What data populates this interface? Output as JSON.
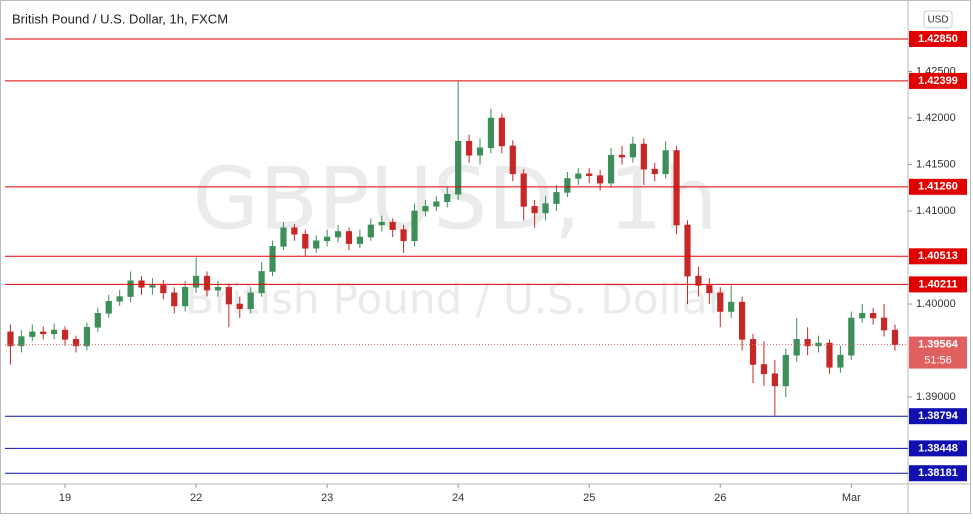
{
  "chart_data": {
    "type": "candlestick",
    "title": "British Pound / U.S. Dollar, 1h, FXCM",
    "watermark": [
      "GBPUSD, 1h",
      "British Pound / U.S. Dollar"
    ],
    "currency_button": "USD",
    "up_color": "#3d8f5a",
    "down_color": "#c62828",
    "grid": false,
    "categories": [
      null,
      null,
      null,
      null,
      null,
      "19",
      null,
      null,
      null,
      null,
      null,
      null,
      null,
      null,
      null,
      null,
      null,
      "22",
      null,
      null,
      null,
      null,
      null,
      null,
      null,
      null,
      null,
      null,
      null,
      "23",
      null,
      null,
      null,
      null,
      null,
      null,
      null,
      null,
      null,
      null,
      null,
      "24",
      null,
      null,
      null,
      null,
      null,
      null,
      null,
      null,
      null,
      null,
      null,
      "25",
      null,
      null,
      null,
      null,
      null,
      null,
      null,
      null,
      null,
      null,
      null,
      "26",
      null,
      null,
      null,
      null,
      null,
      null,
      null,
      null,
      null,
      null,
      null,
      "Mar",
      null,
      null,
      null,
      null
    ],
    "open": [
      1.397,
      1.3955,
      1.3965,
      1.397,
      1.3968,
      1.3972,
      1.3962,
      1.3955,
      1.3975,
      1.399,
      1.4003,
      1.4008,
      1.4025,
      1.4018,
      1.402,
      1.4012,
      1.3998,
      1.4018,
      1.403,
      1.4015,
      1.4018,
      1.4,
      1.3995,
      1.4012,
      1.4035,
      1.4062,
      1.4082,
      1.4075,
      1.406,
      1.4068,
      1.4072,
      1.4078,
      1.4065,
      1.4072,
      1.4085,
      1.4088,
      1.408,
      1.4068,
      1.41,
      1.4105,
      1.411,
      1.4118,
      1.4175,
      1.416,
      1.4168,
      1.42,
      1.417,
      1.414,
      1.4105,
      1.4098,
      1.4108,
      1.412,
      1.4135,
      1.414,
      1.4138,
      1.413,
      1.416,
      1.4158,
      1.4172,
      1.4145,
      1.414,
      1.4165,
      1.4085,
      1.403,
      1.402,
      1.4012,
      1.3992,
      1.4002,
      1.3962,
      1.3935,
      1.3925,
      1.3912,
      1.3945,
      1.3962,
      1.3955,
      1.3958,
      1.3932,
      1.3945,
      1.3985,
      1.399,
      1.3985,
      1.3972
    ],
    "high": [
      1.3978,
      1.3972,
      1.3978,
      1.3976,
      1.3979,
      1.3976,
      1.3966,
      1.398,
      1.3996,
      1.401,
      1.4015,
      1.4035,
      1.403,
      1.4028,
      1.4026,
      1.4018,
      1.4025,
      1.405,
      1.4035,
      1.4025,
      1.4022,
      1.4008,
      1.4018,
      1.4045,
      1.4068,
      1.4088,
      1.4086,
      1.408,
      1.4074,
      1.408,
      1.4085,
      1.4082,
      1.408,
      1.4092,
      1.4095,
      1.4092,
      1.4085,
      1.4108,
      1.4112,
      1.4116,
      1.4126,
      1.424,
      1.4182,
      1.4178,
      1.421,
      1.4205,
      1.4176,
      1.4145,
      1.4112,
      1.4116,
      1.4128,
      1.4142,
      1.4146,
      1.4146,
      1.4144,
      1.4168,
      1.417,
      1.418,
      1.4178,
      1.4152,
      1.4175,
      1.417,
      1.409,
      1.404,
      1.4028,
      1.4018,
      1.402,
      1.4008,
      1.3968,
      1.396,
      1.394,
      1.3952,
      1.3985,
      1.3975,
      1.3966,
      1.3962,
      1.3955,
      1.3992,
      1.4,
      1.3996,
      1.4,
      1.3978
    ],
    "low": [
      1.3935,
      1.3948,
      1.396,
      1.3962,
      1.3962,
      1.3955,
      1.3948,
      1.395,
      1.397,
      1.3985,
      1.3998,
      1.4002,
      1.401,
      1.401,
      1.4005,
      1.399,
      1.3992,
      1.4012,
      1.4008,
      1.4008,
      1.3975,
      1.3985,
      1.399,
      1.4008,
      1.403,
      1.4058,
      1.4068,
      1.4052,
      1.4055,
      1.4062,
      1.4066,
      1.4058,
      1.406,
      1.4068,
      1.4078,
      1.4072,
      1.4055,
      1.4062,
      1.4094,
      1.41,
      1.4104,
      1.4112,
      1.4152,
      1.415,
      1.4162,
      1.4162,
      1.4132,
      1.409,
      1.4082,
      1.409,
      1.41,
      1.4115,
      1.4128,
      1.413,
      1.4122,
      1.4125,
      1.415,
      1.4152,
      1.4128,
      1.4132,
      1.4135,
      1.4075,
      1.4,
      1.4008,
      1.4,
      1.3975,
      1.3985,
      1.395,
      1.3915,
      1.3912,
      1.388,
      1.39,
      1.3938,
      1.3945,
      1.3948,
      1.3925,
      1.3926,
      1.394,
      1.398,
      1.3978,
      1.3965,
      1.395
    ],
    "close": [
      1.3955,
      1.3965,
      1.397,
      1.3968,
      1.3972,
      1.3962,
      1.3955,
      1.3975,
      1.399,
      1.4003,
      1.4008,
      1.4025,
      1.4018,
      1.402,
      1.4012,
      1.3998,
      1.4018,
      1.403,
      1.4015,
      1.4018,
      1.4,
      1.3995,
      1.4012,
      1.4035,
      1.4062,
      1.4082,
      1.4075,
      1.406,
      1.4068,
      1.4072,
      1.4078,
      1.4065,
      1.4072,
      1.4085,
      1.4088,
      1.408,
      1.4068,
      1.41,
      1.4105,
      1.411,
      1.4118,
      1.4175,
      1.416,
      1.4168,
      1.42,
      1.417,
      1.414,
      1.4105,
      1.4098,
      1.4108,
      1.412,
      1.4135,
      1.414,
      1.4138,
      1.413,
      1.416,
      1.4158,
      1.4172,
      1.4145,
      1.414,
      1.4165,
      1.4085,
      1.403,
      1.402,
      1.4012,
      1.3992,
      1.4002,
      1.3962,
      1.3935,
      1.3925,
      1.3912,
      1.3945,
      1.3962,
      1.3955,
      1.3958,
      1.3932,
      1.3945,
      1.3985,
      1.399,
      1.3985,
      1.3972,
      1.39564
    ],
    "ylim": [
      1.38065,
      1.43215
    ],
    "yticks": [
      {
        "value": 1.425,
        "label": "1.42500"
      },
      {
        "value": 1.42,
        "label": "1.42000"
      },
      {
        "value": 1.415,
        "label": "1.41500"
      },
      {
        "value": 1.41,
        "label": "1.41000"
      },
      {
        "value": 1.4,
        "label": "1.40000"
      },
      {
        "value": 1.39,
        "label": "1.39000"
      }
    ],
    "levels": [
      {
        "value": 1.4285,
        "label": "1.42850",
        "color": "#e00000"
      },
      {
        "value": 1.42399,
        "label": "1.42399",
        "color": "#e00000"
      },
      {
        "value": 1.4126,
        "label": "1.41260",
        "color": "#e00000"
      },
      {
        "value": 1.40513,
        "label": "1.40513",
        "color": "#e00000"
      },
      {
        "value": 1.40211,
        "label": "1.40211",
        "color": "#e00000"
      },
      {
        "value": 1.38794,
        "label": "1.38794",
        "color": "#1010b0"
      },
      {
        "value": 1.38448,
        "label": "1.38448",
        "color": "#1010b0"
      },
      {
        "value": 1.38181,
        "label": "1.38181",
        "color": "#1010b0"
      }
    ],
    "current_price": {
      "value": 1.39564,
      "label": "1.39564",
      "countdown": "51:56",
      "color": "#e06060"
    }
  }
}
